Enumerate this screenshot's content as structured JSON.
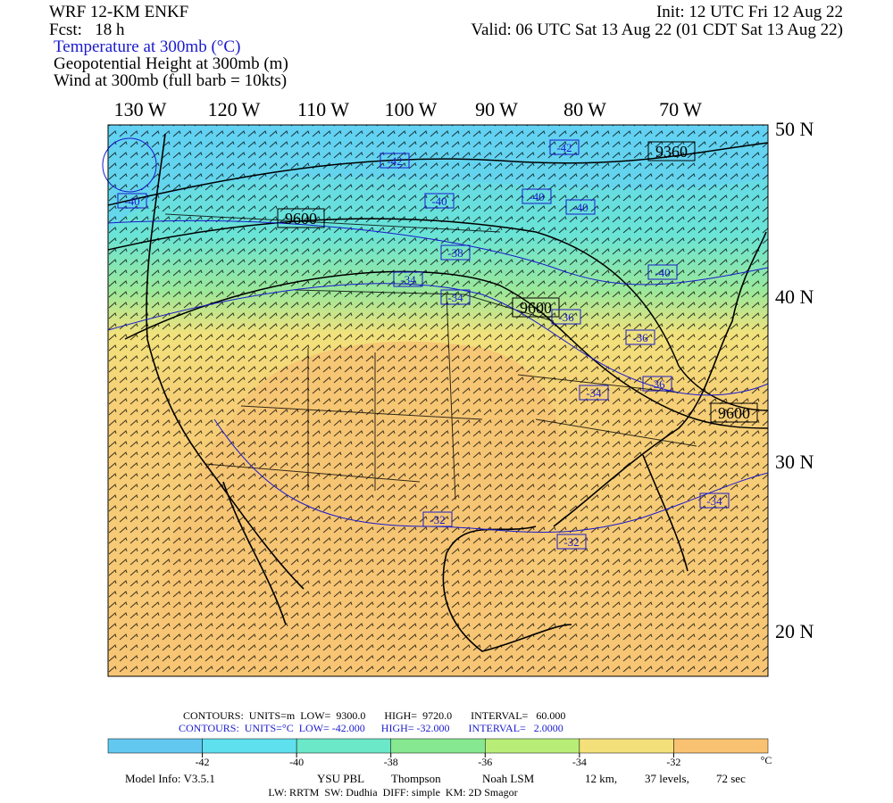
{
  "header": {
    "model": "WRF 12-KM ENKF",
    "forecast": "Fcst:   18 h",
    "init": "Init: 12 UTC Fri 12 Aug 22",
    "valid": "Valid: 06 UTC Sat 13 Aug 22 (01 CDT Sat 13 Aug 22)",
    "fields": [
      "Temperature at 300mb (°C)",
      "Geopotential Height at 300mb (m)",
      "Wind at 300mb (full barb = 10kts)"
    ]
  },
  "map": {
    "lon_labels": [
      "130 W",
      "120 W",
      "110 W",
      "100 W",
      "90 W",
      "80 W",
      "70 W"
    ],
    "lat_labels": [
      "50 N",
      "40 N",
      "30 N",
      "20 N"
    ],
    "height_labels": [
      9360,
      9600,
      9600,
      9600
    ],
    "temp_labels": [
      -40,
      -42,
      -40,
      -38,
      -40,
      -40,
      -42,
      -34,
      -34,
      -36,
      -40,
      -36,
      -34,
      -36,
      -32,
      -32,
      -34
    ]
  },
  "contour_info": [
    "CONTOURS:  UNITS=m  LOW=  9300.0       HIGH=  9720.0       INTERVAL=   60.000",
    "CONTOURS:  UNITS=°C  LOW= -42.000      HIGH= -32.000       INTERVAL=   2.0000"
  ],
  "colorbar": {
    "ticks": [
      -42,
      -40,
      -38,
      -36,
      -34,
      -32
    ],
    "unit": "°C",
    "colors": [
      "#62c8f0",
      "#5ee0ee",
      "#6ae8c8",
      "#86e890",
      "#b8ee78",
      "#f4e07a",
      "#f8c272"
    ]
  },
  "footer": {
    "line1": [
      "Model Info: V3.5.1",
      "YSU PBL",
      "Thompson",
      "Noah LSM",
      "12 km,",
      "37 levels,",
      "72 sec"
    ],
    "line2": "LW: RRTM  SW: Dudhia  DIFF: simple  KM: 2D Smagor"
  }
}
